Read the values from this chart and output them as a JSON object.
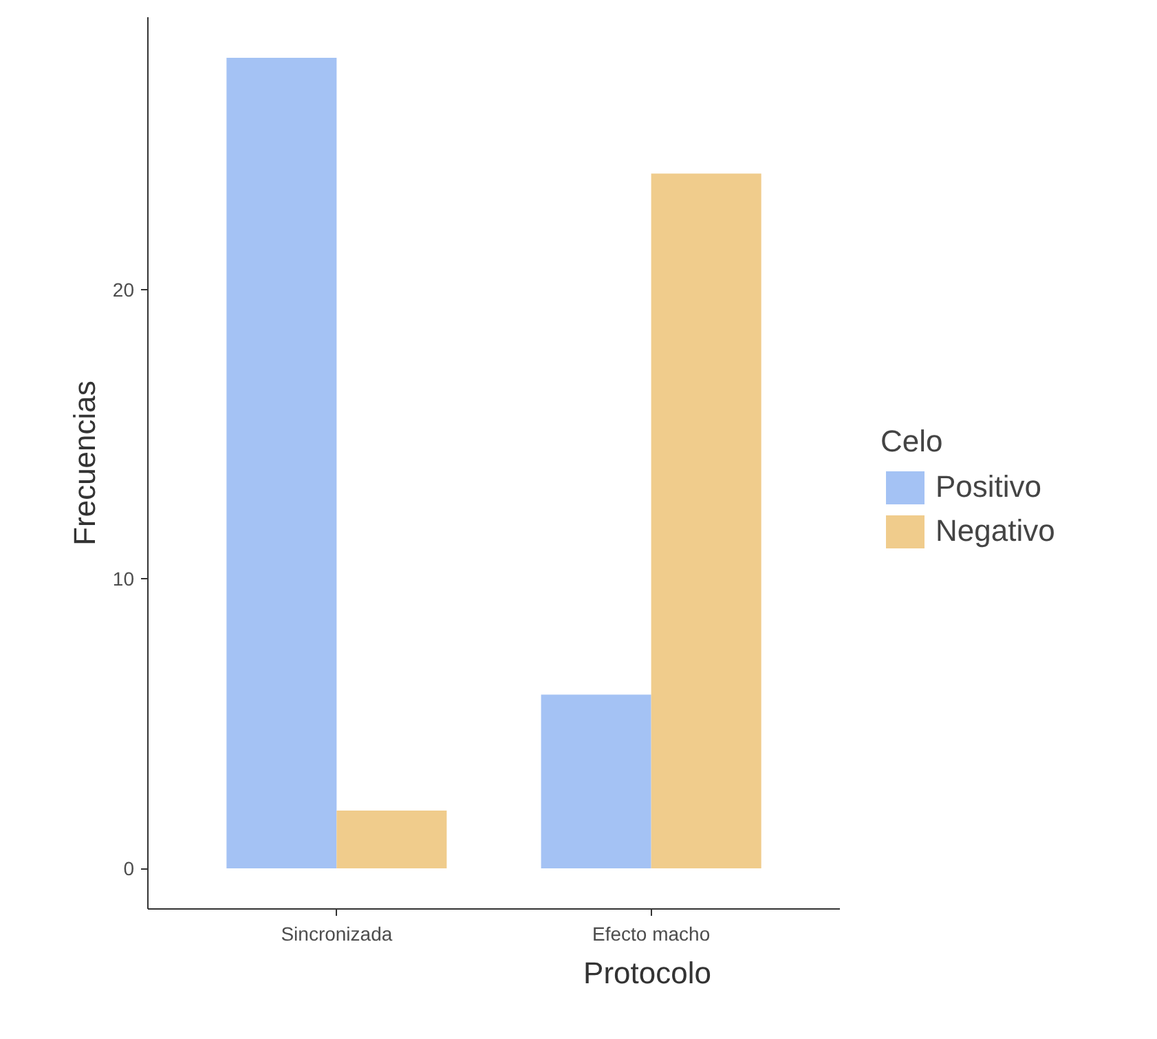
{
  "chart_data": {
    "type": "bar",
    "xlabel": "Protocolo",
    "ylabel": "Frecuencias",
    "legend_title": "Celo",
    "categories": [
      "Sincronizada",
      "Efecto macho"
    ],
    "series": [
      {
        "name": "Positivo",
        "color": "#a4c2f4",
        "values": [
          28,
          6
        ]
      },
      {
        "name": "Negativo",
        "color": "#f0cc8c",
        "values": [
          2,
          24
        ]
      }
    ],
    "ylim": [
      -1.4,
      29.4
    ],
    "yticks": [
      0,
      10,
      20
    ],
    "grid": false,
    "legend": "right"
  }
}
